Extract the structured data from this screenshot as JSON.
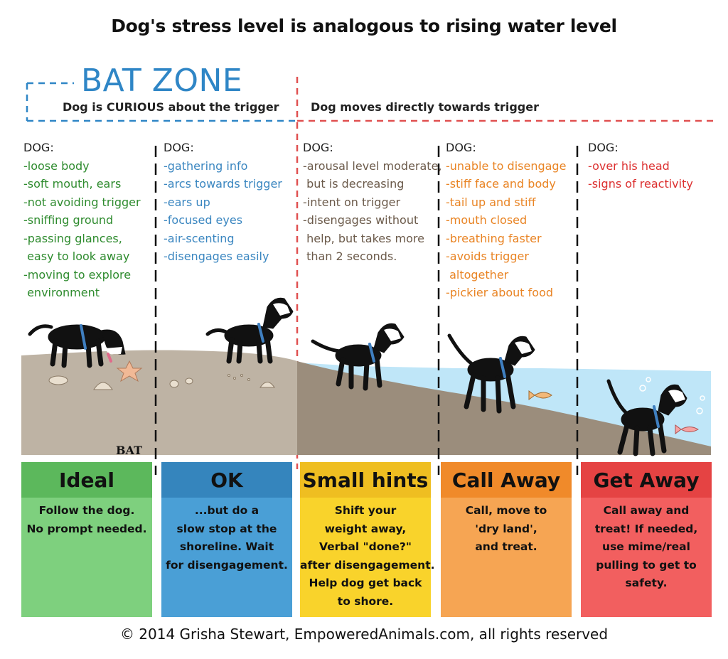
{
  "title": "Dog's stress level is analogous to rising water level",
  "bat_zone": {
    "heading": "BAT ZONE",
    "description": "Dog is CURIOUS about the trigger"
  },
  "right_zone": {
    "description": "Dog moves directly towards trigger"
  },
  "columns": [
    {
      "header": "DOG:",
      "color": "#2e8b2e",
      "items": [
        "-loose body",
        "-soft mouth, ears",
        "-not avoiding trigger",
        "-sniffing ground",
        "-passing glances,",
        " easy to look away",
        "-moving to explore",
        " environment"
      ]
    },
    {
      "header": "DOG:",
      "color": "#3a86c0",
      "items": [
        "-gathering info",
        "-arcs towards trigger",
        "-ears up",
        "-focused eyes",
        "-air-scenting",
        "-disengages easily"
      ]
    },
    {
      "header": "DOG:",
      "color": "#6b5a4a",
      "items": [
        "-arousal level moderate,",
        " but is decreasing",
        "-intent on trigger",
        "-disengages without",
        " help, but takes more",
        " than 2 seconds."
      ]
    },
    {
      "header": "DOG:",
      "color": "#e98424",
      "items": [
        "-unable to disengage",
        "-stiff face and body",
        "-tail up and stiff",
        "-mouth closed",
        "-breathing faster",
        "-avoids trigger",
        " altogether",
        "-pickier about food"
      ]
    },
    {
      "header": "DOG:",
      "color": "#dc3030",
      "items": [
        "-over his head",
        "-signs of reactivity"
      ]
    }
  ],
  "panels": [
    {
      "label": "Ideal",
      "head_color": "#5cb85c",
      "body_color": "#7ed07e",
      "lines": [
        "Follow the dog.",
        "No prompt needed."
      ]
    },
    {
      "label": "OK",
      "head_color": "#3585bd",
      "body_color": "#4a9fd6",
      "lines": [
        "...but do a",
        "slow stop at the",
        "shoreline. Wait",
        "for disengagement."
      ]
    },
    {
      "label": "Small hints",
      "head_color": "#efbe21",
      "body_color": "#f9d32b",
      "lines": [
        "Shift your",
        "weight away,",
        "Verbal \"done?\"",
        "after disengagement.",
        "Help dog get back",
        "to shore."
      ]
    },
    {
      "label": "Call Away",
      "head_color": "#f08a2a",
      "body_color": "#f6a553",
      "lines": [
        "Call, move to",
        "'dry land',",
        "and treat."
      ]
    },
    {
      "label": "Get Away",
      "head_color": "#e54343",
      "body_color": "#f25f5f",
      "lines": [
        "Call away and",
        "treat! If needed,",
        "use mime/real",
        "pulling to get to",
        "safety."
      ]
    }
  ],
  "logo_text": "BAT",
  "footer": "© 2014 Grisha Stewart, EmpoweredAnimals.com, all rights reserved",
  "colors": {
    "bat_blue": "#2f86c6",
    "alert_red": "#e05050",
    "sand": "#beb3a4",
    "wet_sand": "#9b8d7c",
    "water": "#bfe6f8"
  }
}
